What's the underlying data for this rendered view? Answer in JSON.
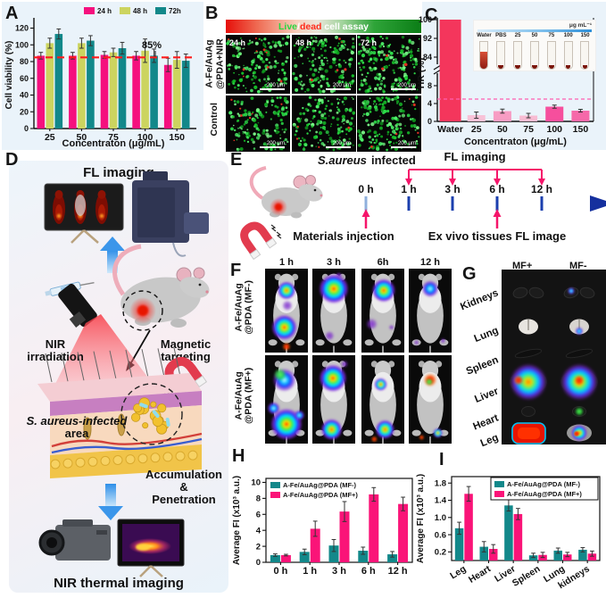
{
  "labels": {
    "A": "A",
    "B": "B",
    "C": "C",
    "D": "D",
    "E": "E",
    "F": "F",
    "G": "G",
    "H": "H",
    "I": "I"
  },
  "chart_data": {
    "A": {
      "type": "bar",
      "categories": [
        "25",
        "50",
        "75",
        "100",
        "150"
      ],
      "series": [
        {
          "name": "24 h",
          "color": "#f5107e",
          "values": [
            87,
            87,
            88,
            87,
            76
          ],
          "errors": [
            4,
            4,
            4,
            5,
            8
          ]
        },
        {
          "name": "48 h",
          "color": "#ccd45f",
          "values": [
            102,
            102,
            91,
            93,
            82
          ],
          "errors": [
            6,
            6,
            5,
            14,
            10
          ]
        },
        {
          "name": "72h",
          "color": "#12888a",
          "values": [
            113,
            105,
            96,
            87,
            81
          ],
          "errors": [
            6,
            6,
            7,
            8,
            8
          ]
        }
      ],
      "xlabel": "Concentraton (μg/mL)",
      "ylabel": "Cell viability (%)",
      "ylim": [
        0,
        128
      ],
      "yticks": [
        "0",
        "20",
        "40",
        "60",
        "80",
        "100",
        "120"
      ],
      "ref_line": {
        "value": 85,
        "label": "85%",
        "color": "#ff1c1c"
      }
    },
    "C": {
      "type": "bar-broken-axis",
      "categories": [
        "Water",
        "25",
        "50",
        "75",
        "100",
        "150"
      ],
      "values": [
        100,
        1.4,
        2.3,
        1.3,
        3.3,
        2.4
      ],
      "errors": [
        0,
        0.7,
        0.45,
        0.5,
        0.35,
        0.3
      ],
      "colors": [
        "#f4365c",
        "#f8c2d7",
        "#f79cc3",
        "#f8bcd3",
        "#f64f9d",
        "#f668a9"
      ],
      "xlabel": "Concentraton (μg/mL)",
      "ylabel": "HR (%)",
      "yticks_lower": [
        "0",
        "4",
        "8"
      ],
      "yticks_upper": [
        "84",
        "92",
        "100"
      ],
      "ref_line": {
        "value": 5,
        "color": "#ff5fb0"
      },
      "inset": {
        "unit": "μg mL⁻¹",
        "tube_labels": [
          "Water",
          "PBS",
          "25",
          "50",
          "75",
          "100",
          "150"
        ]
      }
    },
    "H": {
      "type": "bar",
      "categories": [
        "0 h",
        "1 h",
        "3 h",
        "6 h",
        "12 h"
      ],
      "series": [
        {
          "name": "A-Fe/AuAg@PDA (MF-)",
          "color": "#12888a",
          "values": [
            0.9,
            1.3,
            2.1,
            1.45,
            1.0
          ],
          "errors": [
            0.15,
            0.35,
            0.75,
            0.45,
            0.35
          ]
        },
        {
          "name": "A-Fe/AuAg@PDA (MF+)",
          "color": "#fa1478",
          "values": [
            0.9,
            4.2,
            6.35,
            8.5,
            7.3
          ],
          "errors": [
            0.1,
            0.95,
            1.25,
            0.85,
            0.85
          ]
        }
      ],
      "xlabel": "",
      "ylabel": "Average FI  (x10³ a.u.)",
      "ylim": [
        0,
        10.5
      ],
      "yticks": [
        "0",
        "2",
        "4",
        "6",
        "8",
        "10"
      ]
    },
    "I": {
      "type": "bar",
      "categories": [
        "Leg",
        "Heart",
        "Liver",
        "Spleen",
        "Lung",
        "kidneys"
      ],
      "series": [
        {
          "name": "A-Fe/AuAg@PDA (MF-)",
          "color": "#12888a",
          "values": [
            0.75,
            0.32,
            1.28,
            0.12,
            0.23,
            0.25
          ],
          "errors": [
            0.14,
            0.12,
            0.13,
            0.05,
            0.06,
            0.05
          ]
        },
        {
          "name": "A-Fe/AuAg@PDA (MF+)",
          "color": "#fa1478",
          "values": [
            1.55,
            0.27,
            1.08,
            0.13,
            0.14,
            0.16
          ],
          "errors": [
            0.17,
            0.1,
            0.13,
            0.06,
            0.05,
            0.06
          ]
        }
      ],
      "xlabel": "",
      "ylabel": "Average FI  (x10³ a.u.)",
      "ylim": [
        0,
        1.95
      ],
      "yticks": [
        "0.2",
        "0.6",
        "1.0",
        "1.4",
        "1.8"
      ]
    }
  },
  "panelB": {
    "header": {
      "live": "Live",
      "slash": "/",
      "dead": "dead",
      "rest": " cell assay",
      "live_color": "#27d63f",
      "dead_color": "#ff2a1a",
      "rest_color": "#ffffff"
    },
    "row_labels": [
      "A-Fe/AuAg\n@PDA+NIR",
      "Control"
    ],
    "time_labels": [
      "24 h",
      "48 h",
      "72 h"
    ],
    "scale_bar": "200 μm"
  },
  "panelD": {
    "title": "FL imaging",
    "nir": [
      "NIR",
      "irradiation"
    ],
    "magnetic": [
      "Magnetic",
      "targeting"
    ],
    "infected": [
      "S. aureus-infected",
      "area"
    ],
    "accumulation": [
      "Accumulation",
      "&",
      "Penetration"
    ],
    "thermal": "NIR thermal imaging"
  },
  "panelE": {
    "infected_italic": "S.aureus",
    "infected_rest": " infected",
    "fl_imaging": "FL imaging",
    "timeline_ticks": [
      "0 h",
      "1 h",
      "3 h",
      "6 h",
      "12 h"
    ],
    "injection": "Materials injection",
    "exvivo": "Ex vivo tissues FL image"
  },
  "panelF": {
    "col_labels": [
      "1 h",
      "3 h",
      "6h",
      "12 h"
    ],
    "row_labels": [
      "A-Fe/AuAg\n@PDA (MF-)",
      "A-Fe/AuAg\n@PDA (MF+)"
    ]
  },
  "panelG": {
    "col_labels": [
      "MF+",
      "MF-"
    ],
    "organ_labels": [
      "Kidneys",
      "Lung",
      "Spleen",
      "Liver",
      "Heart",
      "Leg"
    ]
  }
}
